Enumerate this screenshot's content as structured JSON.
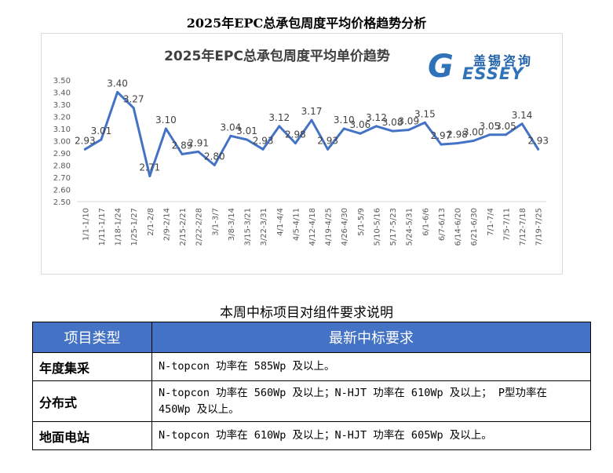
{
  "doc_title": "2025年EPC总承包周度平均价格趋势分析",
  "logo": {
    "cn": "盖锡咨询",
    "en": "ESSEY",
    "g": "G"
  },
  "chart_data": {
    "type": "line",
    "title": "2025年EPC总承包周度平均单价趋势",
    "xlabel": "",
    "ylabel": "",
    "ylim": [
      2.5,
      3.5
    ],
    "yticks": [
      "2.50",
      "2.60",
      "2.70",
      "2.80",
      "2.90",
      "3.00",
      "3.10",
      "3.20",
      "3.30",
      "3.40",
      "3.50"
    ],
    "grid": false,
    "categories": [
      "1/1-1/10",
      "1/11-1/17",
      "1/18-1/24",
      "1/25-1/27",
      "2/1-2/8",
      "2/9-2/14",
      "2/15-2/21",
      "2/22-2/28",
      "3/1-3/7",
      "3/8-3/14",
      "3/15-3/21",
      "3/22-3/31",
      "4/1-4/4",
      "4/5-4/11",
      "4/12-4/18",
      "4/19-4/25",
      "4/26-4/30",
      "5/1-5/9",
      "5/10-5/16",
      "5/17-5/23",
      "5/24-5/31",
      "6/1-6/6",
      "6/7-6/13",
      "6/14-6/20",
      "6/21-6/30",
      "7/1-7/4",
      "7/5-7/11",
      "7/12-7/18",
      "7/19-7/25"
    ],
    "values": [
      2.93,
      3.01,
      3.4,
      3.27,
      2.71,
      3.1,
      2.89,
      2.91,
      2.8,
      3.04,
      3.01,
      2.93,
      3.12,
      2.98,
      3.17,
      2.93,
      3.1,
      3.06,
      3.12,
      3.08,
      3.09,
      3.15,
      2.97,
      2.98,
      3.0,
      3.05,
      3.05,
      3.14,
      2.93
    ],
    "labels": [
      "2.93",
      "3.01",
      "3.40",
      "3.27",
      "2.71",
      "3.10",
      "2.89",
      "2.91",
      "2.80",
      "3.04",
      "3.01",
      "2.93",
      "3.12",
      "2.98",
      "3.17",
      "2.93",
      "3.10",
      "3.06",
      "3.12",
      "3.08",
      "3.09",
      "3.15",
      "2.97",
      "2.98",
      "3.00",
      "3.05",
      "3.05",
      "3.14",
      "2.93"
    ],
    "line_color": "#4472c4"
  },
  "table": {
    "caption": "本周中标项目对组件要求说明",
    "headers": [
      "项目类型",
      "最新中标要求"
    ],
    "header_color": "#4472c4",
    "rows": [
      {
        "type": "年度集采",
        "req": "N-topcon 功率在 585Wp 及以上。"
      },
      {
        "type": "分布式",
        "req": "N-topcon 功率在 560Wp 及以上；N-HJT 功率在 610Wp 及以上；  P型功率在 450Wp 及以上。"
      },
      {
        "type": "地面电站",
        "req": "N-topcon 功率在 610Wp 及以上；N-HJT 功率在 605Wp 及以上。"
      }
    ]
  }
}
